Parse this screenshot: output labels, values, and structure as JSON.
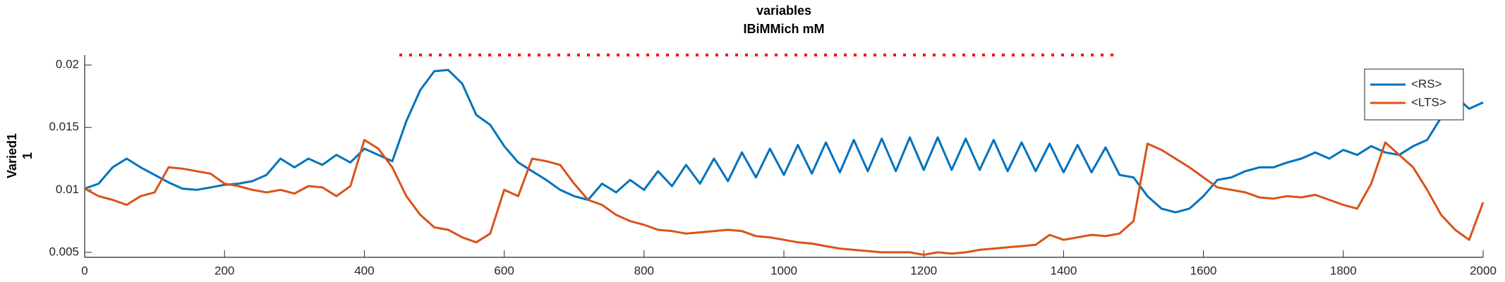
{
  "chart_data": {
    "type": "line",
    "title": [
      "variables",
      "IBiMMich mM"
    ],
    "ylabel": [
      "Varied1",
      "1"
    ],
    "x": [
      0,
      20,
      40,
      60,
      80,
      100,
      120,
      140,
      160,
      180,
      200,
      220,
      240,
      260,
      280,
      300,
      320,
      340,
      360,
      380,
      400,
      420,
      440,
      460,
      480,
      500,
      520,
      540,
      560,
      580,
      600,
      620,
      640,
      660,
      680,
      700,
      720,
      740,
      760,
      780,
      800,
      820,
      840,
      860,
      880,
      900,
      920,
      940,
      960,
      980,
      1000,
      1020,
      1040,
      1060,
      1080,
      1100,
      1120,
      1140,
      1160,
      1180,
      1200,
      1220,
      1240,
      1260,
      1280,
      1300,
      1320,
      1340,
      1360,
      1380,
      1400,
      1420,
      1440,
      1460,
      1480,
      1500,
      1520,
      1540,
      1560,
      1580,
      1600,
      1620,
      1640,
      1660,
      1680,
      1700,
      1720,
      1740,
      1760,
      1780,
      1800,
      1820,
      1840,
      1860,
      1880,
      1900,
      1920,
      1940,
      1960,
      1980,
      2000
    ],
    "series": [
      {
        "name": "<RS>",
        "color": "#0072bd",
        "values": [
          0.0101,
          0.0105,
          0.0118,
          0.0125,
          0.0118,
          0.0112,
          0.0106,
          0.0101,
          0.01,
          0.0102,
          0.0104,
          0.0105,
          0.0107,
          0.0112,
          0.0125,
          0.0118,
          0.0125,
          0.012,
          0.0128,
          0.0122,
          0.0133,
          0.0128,
          0.0123,
          0.0155,
          0.018,
          0.0195,
          0.0196,
          0.0185,
          0.016,
          0.0152,
          0.0135,
          0.0122,
          0.0115,
          0.0108,
          0.01,
          0.0095,
          0.0092,
          0.0105,
          0.0098,
          0.0108,
          0.01,
          0.0115,
          0.0103,
          0.012,
          0.0105,
          0.0125,
          0.0107,
          0.013,
          0.011,
          0.0133,
          0.0112,
          0.0136,
          0.0113,
          0.0138,
          0.0114,
          0.014,
          0.0115,
          0.0141,
          0.0115,
          0.0142,
          0.0116,
          0.0142,
          0.0116,
          0.0141,
          0.0116,
          0.014,
          0.0115,
          0.0138,
          0.0115,
          0.0137,
          0.0114,
          0.0136,
          0.0114,
          0.0134,
          0.0112,
          0.011,
          0.0095,
          0.0085,
          0.0082,
          0.0085,
          0.0095,
          0.0108,
          0.011,
          0.0115,
          0.0118,
          0.0118,
          0.0122,
          0.0125,
          0.013,
          0.0125,
          0.0132,
          0.0128,
          0.0135,
          0.013,
          0.0128,
          0.0135,
          0.014,
          0.0158,
          0.0175,
          0.0165,
          0.017
        ]
      },
      {
        "name": "<LTS>",
        "color": "#d95319",
        "values": [
          0.0101,
          0.0095,
          0.0092,
          0.0088,
          0.0095,
          0.0098,
          0.0118,
          0.0117,
          0.0115,
          0.0113,
          0.0105,
          0.0103,
          0.01,
          0.0098,
          0.01,
          0.0097,
          0.0103,
          0.0102,
          0.0095,
          0.0103,
          0.014,
          0.0133,
          0.0118,
          0.0095,
          0.008,
          0.007,
          0.0068,
          0.0062,
          0.0058,
          0.0065,
          0.01,
          0.0095,
          0.0125,
          0.0123,
          0.012,
          0.0105,
          0.0092,
          0.0088,
          0.008,
          0.0075,
          0.0072,
          0.0068,
          0.0067,
          0.0065,
          0.0066,
          0.0067,
          0.0068,
          0.0067,
          0.0063,
          0.0062,
          0.006,
          0.0058,
          0.0057,
          0.0055,
          0.0053,
          0.0052,
          0.0051,
          0.005,
          0.005,
          0.005,
          0.0048,
          0.005,
          0.0049,
          0.005,
          0.0052,
          0.0053,
          0.0054,
          0.0055,
          0.0056,
          0.0064,
          0.006,
          0.0062,
          0.0064,
          0.0063,
          0.0065,
          0.0075,
          0.0137,
          0.0132,
          0.0125,
          0.0118,
          0.011,
          0.0102,
          0.01,
          0.0098,
          0.0094,
          0.0093,
          0.0095,
          0.0094,
          0.0096,
          0.0092,
          0.0088,
          0.0085,
          0.0105,
          0.0138,
          0.0128,
          0.0118,
          0.01,
          0.008,
          0.0068,
          0.006,
          0.009
        ]
      }
    ],
    "marker_line": {
      "x": [
        450,
        1480
      ],
      "y": 0.0208,
      "color": "#ff0000"
    },
    "xlim": [
      0,
      2000
    ],
    "xticks": [
      0,
      200,
      400,
      600,
      800,
      1000,
      1200,
      1400,
      1600,
      1800,
      2000
    ],
    "ylim": [
      0.0046,
      0.0208
    ],
    "yticks": [
      0.005,
      0.01,
      0.015,
      0.02
    ],
    "legend": "northeast"
  }
}
